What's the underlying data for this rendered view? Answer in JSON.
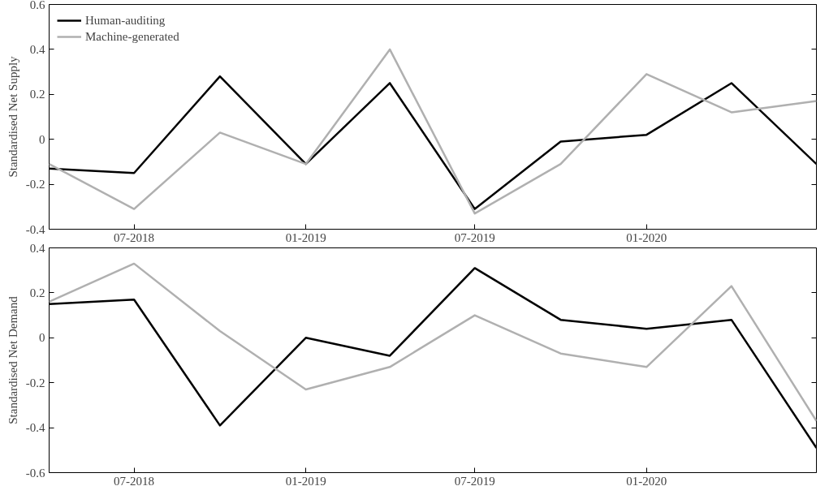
{
  "chart_data": [
    {
      "type": "line",
      "ylabel": "Standardised Net Supply",
      "x": [
        "2018-04-01",
        "2018-07-01",
        "2018-10-01",
        "2019-01-01",
        "2019-04-01",
        "2019-07-01",
        "2019-10-01",
        "2020-01-01",
        "2020-04-01",
        "2020-07-01"
      ],
      "xlim": [
        "2018-04-01",
        "2020-07-01"
      ],
      "xticks": [
        {
          "value": "2018-07-01",
          "label": "07-2018"
        },
        {
          "value": "2019-01-01",
          "label": "01-2019"
        },
        {
          "value": "2019-07-01",
          "label": "07-2019"
        },
        {
          "value": "2020-01-01",
          "label": "01-2020"
        }
      ],
      "ylim": [
        -0.4,
        0.6
      ],
      "yticks": [
        {
          "value": -0.4,
          "label": "-0.4"
        },
        {
          "value": -0.2,
          "label": "-0.2"
        },
        0,
        0.2,
        0.4,
        0.6
      ],
      "legend": "top left",
      "grid": false,
      "series": [
        {
          "name": "Human-auditing",
          "color": "#000000",
          "values": [
            -0.13,
            -0.15,
            0.28,
            -0.11,
            0.25,
            -0.31,
            -0.01,
            0.02,
            0.25,
            -0.11
          ]
        },
        {
          "name": "Machine-generated",
          "color": "#b0b0b0",
          "values": [
            -0.11,
            -0.31,
            0.03,
            -0.11,
            0.4,
            -0.33,
            -0.11,
            0.29,
            0.12,
            0.17
          ]
        }
      ]
    },
    {
      "type": "line",
      "ylabel": "Standardised Net Demand",
      "x": [
        "2018-04-01",
        "2018-07-01",
        "2018-10-01",
        "2019-01-01",
        "2019-04-01",
        "2019-07-01",
        "2019-10-01",
        "2020-01-01",
        "2020-04-01",
        "2020-07-01"
      ],
      "xlim": [
        "2018-04-01",
        "2020-07-01"
      ],
      "xticks": [
        {
          "value": "2018-07-01",
          "label": "07-2018"
        },
        {
          "value": "2019-01-01",
          "label": "01-2019"
        },
        {
          "value": "2019-07-01",
          "label": "07-2019"
        },
        {
          "value": "2020-01-01",
          "label": "01-2020"
        }
      ],
      "ylim": [
        -0.6,
        0.4
      ],
      "yticks": [
        {
          "value": -0.6,
          "label": "-0.6"
        },
        {
          "value": -0.4,
          "label": "-0.4"
        },
        {
          "value": -0.2,
          "label": "-0.2"
        },
        0,
        0.2,
        0.4
      ],
      "grid": false,
      "series": [
        {
          "color": "#000000",
          "values": [
            0.15,
            0.17,
            -0.39,
            0.0,
            -0.08,
            0.31,
            0.08,
            0.04,
            0.08,
            -0.49
          ]
        },
        {
          "color": "#b0b0b0",
          "values": [
            0.16,
            0.33,
            0.03,
            -0.23,
            -0.13,
            0.1,
            -0.07,
            -0.13,
            0.23,
            -0.37
          ]
        }
      ]
    }
  ]
}
